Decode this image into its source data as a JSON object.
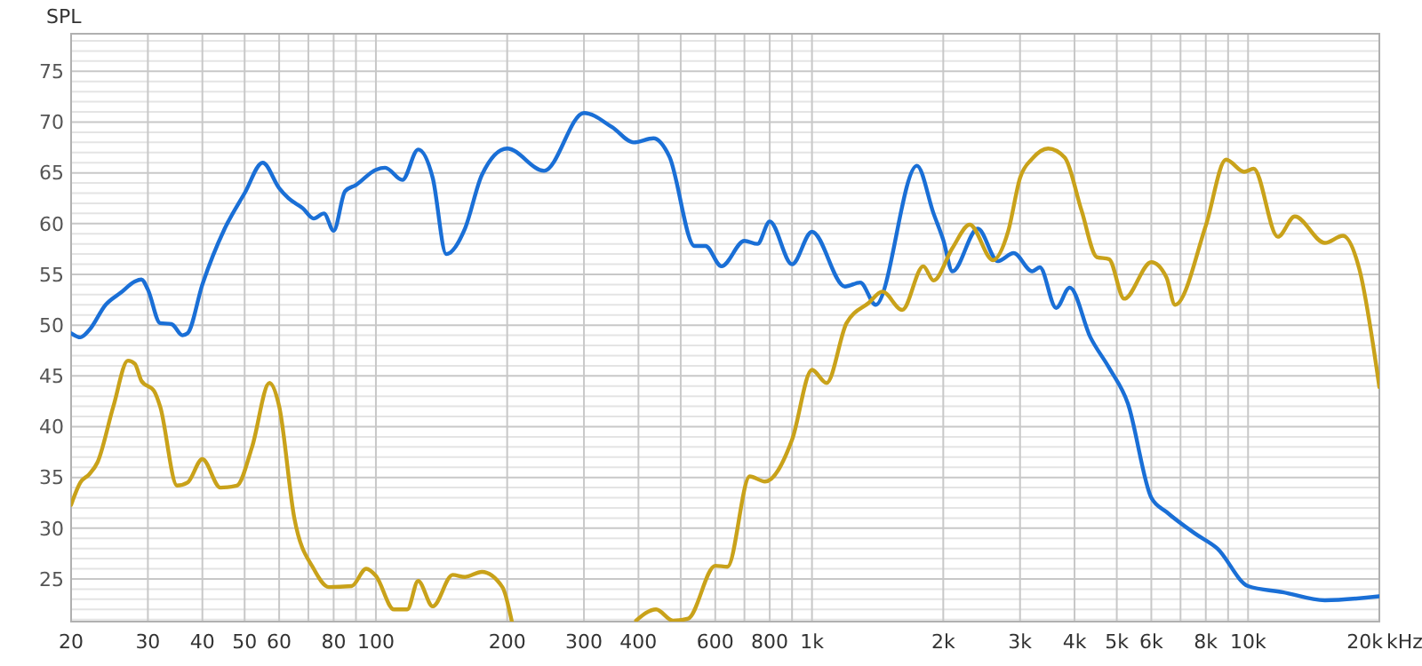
{
  "chart_data": {
    "type": "line",
    "ylabel": "SPL",
    "log": "x",
    "grid": true,
    "line_style": "solid",
    "marker": "none",
    "xlabel": "kHz",
    "xlim": [
      20,
      20000
    ],
    "ylim": [
      20.8,
      78.7
    ],
    "xticks": [
      20,
      30,
      40,
      50,
      60,
      {
        "value": 70,
        "label": null
      },
      80,
      {
        "value": 90,
        "label": null
      },
      100,
      200,
      300,
      400,
      {
        "value": 500,
        "label": null
      },
      600,
      {
        "value": 700,
        "label": null
      },
      800,
      {
        "value": 900,
        "label": null
      },
      {
        "value": 1000,
        "label": "1k"
      },
      {
        "value": 2000,
        "label": "2k"
      },
      {
        "value": 3000,
        "label": "3k"
      },
      {
        "value": 4000,
        "label": "4k"
      },
      {
        "value": 5000,
        "label": "5k"
      },
      {
        "value": 6000,
        "label": "6k"
      },
      {
        "value": 7000,
        "label": null
      },
      {
        "value": 8000,
        "label": "8k"
      },
      {
        "value": 9000,
        "label": null
      },
      {
        "value": 10000,
        "label": "10k"
      },
      {
        "value": 20000,
        "label": "20k"
      }
    ],
    "yticks": [
      {
        "value": 21,
        "label": null
      },
      {
        "value": 22,
        "label": null
      },
      {
        "value": 23,
        "label": null
      },
      {
        "value": 24,
        "label": null
      },
      25,
      {
        "value": 26,
        "label": null
      },
      {
        "value": 27,
        "label": null
      },
      {
        "value": 28,
        "label": null
      },
      {
        "value": 29,
        "label": null
      },
      30,
      {
        "value": 31,
        "label": null
      },
      {
        "value": 32,
        "label": null
      },
      {
        "value": 33,
        "label": null
      },
      {
        "value": 34,
        "label": null
      },
      35,
      {
        "value": 36,
        "label": null
      },
      {
        "value": 37,
        "label": null
      },
      {
        "value": 38,
        "label": null
      },
      {
        "value": 39,
        "label": null
      },
      40,
      {
        "value": 41,
        "label": null
      },
      {
        "value": 42,
        "label": null
      },
      {
        "value": 43,
        "label": null
      },
      {
        "value": 44,
        "label": null
      },
      45,
      {
        "value": 46,
        "label": null
      },
      {
        "value": 47,
        "label": null
      },
      {
        "value": 48,
        "label": null
      },
      {
        "value": 49,
        "label": null
      },
      50,
      {
        "value": 51,
        "label": null
      },
      {
        "value": 52,
        "label": null
      },
      {
        "value": 53,
        "label": null
      },
      {
        "value": 54,
        "label": null
      },
      55,
      {
        "value": 56,
        "label": null
      },
      {
        "value": 57,
        "label": null
      },
      {
        "value": 58,
        "label": null
      },
      {
        "value": 59,
        "label": null
      },
      60,
      {
        "value": 61,
        "label": null
      },
      {
        "value": 62,
        "label": null
      },
      {
        "value": 63,
        "label": null
      },
      {
        "value": 64,
        "label": null
      },
      65,
      {
        "value": 66,
        "label": null
      },
      {
        "value": 67,
        "label": null
      },
      {
        "value": 68,
        "label": null
      },
      {
        "value": 69,
        "label": null
      },
      70,
      {
        "value": 71,
        "label": null
      },
      {
        "value": 72,
        "label": null
      },
      {
        "value": 73,
        "label": null
      },
      {
        "value": 74,
        "label": null
      },
      75,
      {
        "value": 76,
        "label": null
      },
      {
        "value": 77,
        "label": null
      },
      {
        "value": 78,
        "label": null
      }
    ],
    "series": [
      {
        "color": "#1a6fd6",
        "x": [
          20,
          21,
          22,
          24,
          26,
          28,
          29,
          30,
          32,
          34,
          36,
          37,
          40,
          45,
          50,
          55,
          60,
          63,
          68,
          72,
          76,
          80,
          85,
          90,
          100,
          105,
          115,
          125,
          135,
          145,
          160,
          175,
          200,
          243,
          300,
          348,
          390,
          433,
          471,
          538,
          570,
          620,
          700,
          750,
          800,
          900,
          1000,
          1190,
          1290,
          1400,
          1740,
          1900,
          2000,
          2100,
          2400,
          2670,
          2900,
          3200,
          3330,
          3630,
          3900,
          4350,
          4800,
          5300,
          6000,
          6500,
          7600,
          8500,
          10000,
          12000,
          15000,
          20000
        ],
        "values": [
          49.2,
          48.8,
          49.5,
          52,
          53.2,
          54.3,
          54.5,
          53.5,
          50.2,
          50.1,
          49,
          49.2,
          54,
          59.5,
          63,
          66,
          63.5,
          62.5,
          61.5,
          60.5,
          61,
          59.3,
          63.2,
          63.8,
          65.3,
          65.5,
          64.3,
          67.3,
          64.5,
          57,
          59.5,
          64.8,
          67.4,
          65.2,
          70.9,
          69.5,
          68,
          68.4,
          66.6,
          57.8,
          57.8,
          55.8,
          58.3,
          58,
          60.2,
          56,
          59.2,
          53.8,
          54.2,
          52,
          65.7,
          61,
          58.4,
          55.3,
          59.5,
          56.3,
          57.1,
          55.3,
          55.7,
          51.7,
          53.7,
          48.8,
          45.8,
          42.3,
          33,
          31.6,
          29.4,
          28,
          24.3,
          23.7,
          22.9,
          23.3
        ]
      },
      {
        "color": "#c9a21a",
        "x": [
          20,
          21,
          22,
          23,
          25,
          27,
          28,
          29,
          31,
          32,
          35,
          37,
          40,
          44,
          48,
          52,
          57,
          60,
          65,
          72,
          78,
          88,
          95,
          100,
          110,
          118,
          125,
          135,
          150,
          160,
          175,
          195,
          205,
          215,
          395,
          439,
          480,
          520,
          600,
          640,
          720,
          780,
          900,
          1000,
          1080,
          1200,
          1350,
          1450,
          1610,
          1800,
          1900,
          2100,
          2300,
          2600,
          2820,
          3000,
          3200,
          3480,
          3800,
          4150,
          4500,
          4800,
          5200,
          6000,
          6500,
          6800,
          8000,
          8900,
          9800,
          10300,
          11700,
          12800,
          15000,
          16500,
          18000,
          20000
        ],
        "values": [
          32.3,
          34.5,
          35.3,
          36.5,
          42,
          46.5,
          46.2,
          44.5,
          43.5,
          42,
          34.2,
          34.5,
          36.8,
          34,
          34.2,
          38,
          44.3,
          42,
          31,
          26,
          24.2,
          24.3,
          26,
          25.3,
          22,
          22,
          24.8,
          22.3,
          25.4,
          25.2,
          25.7,
          24.2,
          20.8,
          null,
          20.9,
          22,
          20.9,
          21.1,
          26.3,
          26.2,
          35.1,
          34.6,
          38.7,
          45.6,
          44.3,
          50.2,
          52.2,
          53.3,
          51.5,
          55.8,
          54.4,
          57.6,
          59.9,
          56.4,
          59.3,
          64.5,
          66.4,
          67.4,
          66.5,
          61.3,
          56.7,
          56.5,
          52.6,
          56.2,
          54.7,
          52,
          59.8,
          66.3,
          65.1,
          65.4,
          58.7,
          60.7,
          58.1,
          58.8,
          55.5,
          43.9
        ]
      }
    ]
  }
}
